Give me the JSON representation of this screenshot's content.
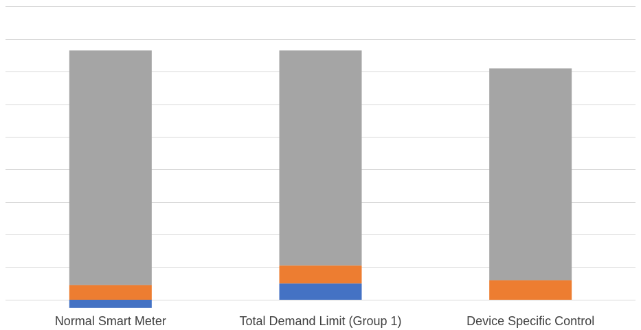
{
  "chart_data": {
    "type": "bar",
    "stacked": true,
    "categories": [
      "Normal Smart Meter",
      "Total Demand Limit (Group 1)",
      "Device Specific Control"
    ],
    "series": [
      {
        "values": [
          -0.25,
          0.5,
          0.0
        ],
        "color": "#4472C4"
      },
      {
        "values": [
          0.45,
          0.55,
          0.6
        ],
        "color": "#ED7D31"
      },
      {
        "values": [
          7.2,
          6.6,
          6.5
        ],
        "color": "#A5A5A5"
      }
    ],
    "ylim": [
      -0.25,
      9.0
    ],
    "gridlines": [
      0,
      1,
      2,
      3,
      4,
      5,
      6,
      7,
      8,
      9
    ],
    "grid": true,
    "legend": "none",
    "title": "",
    "xlabel": "",
    "ylabel": ""
  }
}
